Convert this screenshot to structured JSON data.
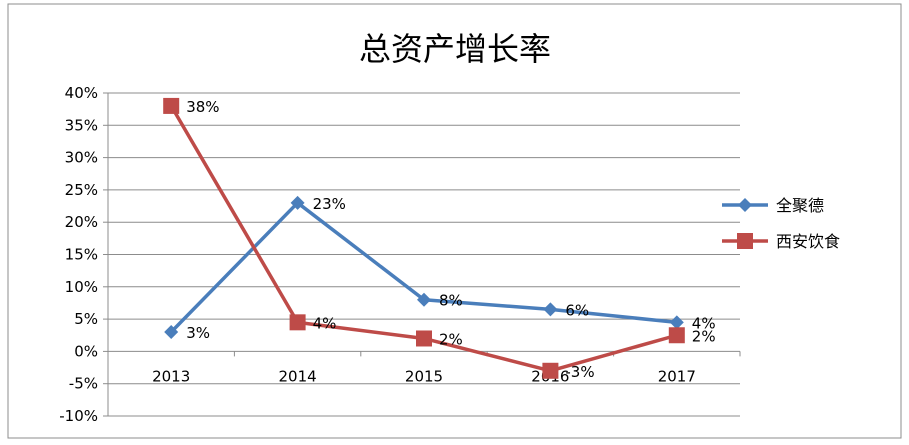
{
  "chart_data": {
    "type": "line",
    "title": "总资产增长率",
    "categories": [
      "2013",
      "2014",
      "2015",
      "2016",
      "2017"
    ],
    "y_ticks": [
      "40%",
      "35%",
      "30%",
      "25%",
      "20%",
      "15%",
      "10%",
      "5%",
      "0%",
      "-5%",
      "-10%"
    ],
    "ylim": [
      -10,
      40
    ],
    "y_unit": "%",
    "grid": true,
    "legend_position": "right",
    "series": [
      {
        "name": "全聚德",
        "values": [
          3,
          23,
          8,
          6.5,
          4.5
        ],
        "labels": [
          "3%",
          "23%",
          "8%",
          "6%",
          "4%"
        ],
        "color": "#4a7ebb",
        "marker": "diamond"
      },
      {
        "name": "西安饮食",
        "values": [
          38,
          4.5,
          2,
          -3,
          2.5
        ],
        "labels": [
          "38%",
          "4%",
          "2%",
          "-3%",
          "2%"
        ],
        "color": "#be4b48",
        "marker": "square"
      }
    ]
  }
}
